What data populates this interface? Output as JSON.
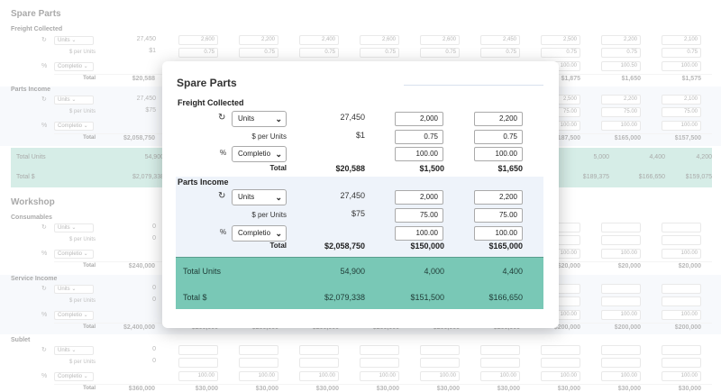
{
  "background": {
    "sections": [
      {
        "title": "Spare Parts",
        "groups": [
          {
            "name": "Freight Collected",
            "unit_select": "Units",
            "rate_label": "$ per Units",
            "pct_select": "Completio",
            "base_value": "27,450",
            "rate_value": "$1",
            "units_row": [
              "2,600",
              "2,200",
              "2,400",
              "2,600",
              "2,600",
              "2,450",
              "2,500",
              "2,200",
              "2,100"
            ],
            "rate_row": [
              "0.75",
              "0.75",
              "0.75",
              "0.75",
              "0.75",
              "0.75",
              "0.75",
              "0.75",
              "0.75"
            ],
            "pct_row": [
              "100.00",
              "100.00",
              "100.00",
              "100.00",
              "100.00",
              "100.00",
              "100.00",
              "100.50",
              "100.00"
            ],
            "total_label": "Total",
            "total_base": "$20,588",
            "totals": [
              "",
              "",
              "",
              "",
              "",
              "",
              "$1,875",
              "$1,650",
              "$1,575"
            ]
          },
          {
            "name": "Parts Income",
            "unit_select": "Units",
            "rate_label": "$ per Units",
            "pct_select": "Completio",
            "base_value": "27,450",
            "rate_value": "$75",
            "units_row": [
              "",
              "",
              "",
              "",
              "",
              "",
              "2,500",
              "2,200",
              "2,100"
            ],
            "rate_row": [
              "",
              "",
              "",
              "",
              "",
              "",
              "75.00",
              "75.00",
              "75.00"
            ],
            "pct_row": [
              "",
              "",
              "",
              "",
              "",
              "",
              "100.00",
              "100.00",
              "100.00"
            ],
            "total_label": "Total",
            "total_base": "$2,058,750",
            "totals": [
              "",
              "",
              "",
              "",
              "",
              "",
              "$187,500",
              "$165,000",
              "$157,500"
            ]
          }
        ],
        "summary": [
          {
            "label": "Total Units",
            "base": "54,900",
            "values": [
              "5,000",
              "4,400",
              "4,200"
            ]
          },
          {
            "label": "Total $",
            "base": "$2,079,338",
            "values": [
              "$189,375",
              "$166,650",
              "$159,075"
            ]
          }
        ]
      },
      {
        "title": "Workshop",
        "groups": [
          {
            "name": "Consumables",
            "unit_select": "Units",
            "rate_label": "$ per Units",
            "pct_select": "Completio",
            "base_value": "0",
            "rate_value": "0",
            "total_label": "Total",
            "total_base": "$240,000",
            "pct_row": [
              "",
              "",
              "",
              "",
              "",
              "",
              "100.00",
              "100.00",
              "100.00"
            ],
            "totals": [
              "",
              "",
              "",
              "",
              "",
              "",
              "$20,000",
              "$20,000",
              "$20,000"
            ]
          },
          {
            "name": "Service Income",
            "unit_select": "Units",
            "rate_label": "$ per Units",
            "pct_select": "Completio",
            "base_value": "0",
            "rate_value": "0",
            "total_label": "Total",
            "total_base": "$2,400,000",
            "pct_row": [
              "",
              "",
              "",
              "",
              "",
              "",
              "100.00",
              "100.00",
              "100.00"
            ],
            "totals": [
              "$200,000",
              "$200,000",
              "$200,000",
              "$200,000",
              "$200,000",
              "$200,000",
              "$200,000",
              "$200,000",
              "$200,000"
            ]
          },
          {
            "name": "Sublet",
            "unit_select": "Units",
            "rate_label": "$ per Units",
            "pct_select": "Completio",
            "base_value": "0",
            "rate_value": "0",
            "total_label": "Total",
            "total_base": "$360,000",
            "pct_row": [
              "100.00",
              "100.00",
              "100.00",
              "100.00",
              "100.00",
              "100.00",
              "100.00",
              "100.00",
              "100.00"
            ],
            "totals": [
              "$30,000",
              "$30,000",
              "$30,000",
              "$30,000",
              "$30,000",
              "$30,000",
              "$30,000",
              "$30,000",
              "$30,000"
            ]
          }
        ]
      }
    ]
  },
  "modal": {
    "title": "Spare Parts",
    "freight": {
      "title": "Freight Collected",
      "unit_select": "Units",
      "base_value": "27,450",
      "rate_label": "$ per Units",
      "rate_value": "$1",
      "pct_select": "Completio",
      "pct_symbol": "%",
      "units_inputs": [
        "2,000",
        "2,200"
      ],
      "rate_inputs": [
        "0.75",
        "0.75"
      ],
      "pct_inputs": [
        "100.00",
        "100.00"
      ],
      "total_label": "Total",
      "totals": [
        "$20,588",
        "$1,500",
        "$1,650"
      ]
    },
    "parts": {
      "title": "Parts Income",
      "unit_select": "Units",
      "base_value": "27,450",
      "rate_label": "$ per Units",
      "rate_value": "$75",
      "pct_select": "Completio",
      "pct_symbol": "%",
      "units_inputs": [
        "2,000",
        "2,200"
      ],
      "rate_inputs": [
        "75.00",
        "75.00"
      ],
      "pct_inputs": [
        "100.00",
        "100.00"
      ],
      "total_label": "Total",
      "totals": [
        "$2,058,750",
        "$150,000",
        "$165,000"
      ]
    },
    "summary": {
      "total_units": {
        "label": "Total Units",
        "values": [
          "54,900",
          "4,000",
          "4,400"
        ]
      },
      "total_dollars": {
        "label": "Total $",
        "values": [
          "$2,079,338",
          "$151,500",
          "$166,650"
        ]
      }
    }
  },
  "colors": {
    "summary_green": "#79c8b6",
    "band_blue": "#eef3fa"
  }
}
